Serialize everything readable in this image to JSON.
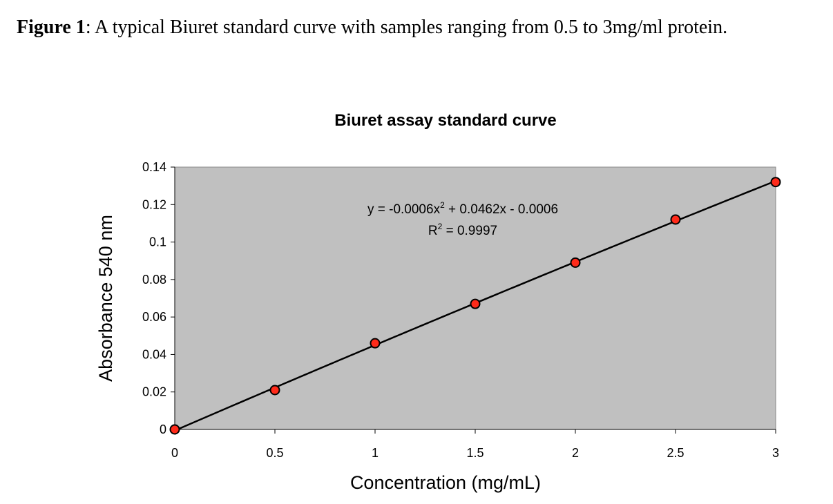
{
  "caption": {
    "label": "Figure 1",
    "text": ": A typical Biuret standard curve with samples ranging from 0.5 to 3mg/ml protein."
  },
  "chart_data": {
    "type": "scatter",
    "title": "Biuret assay standard curve",
    "xlabel": "Concentration (mg/mL)",
    "ylabel": "Absorbance 540 nm",
    "xlim": [
      0,
      3
    ],
    "ylim": [
      0,
      0.14
    ],
    "x_ticks": [
      "0",
      "0.5",
      "1",
      "1.5",
      "2",
      "2.5",
      "3"
    ],
    "y_ticks": [
      "0",
      "0.02",
      "0.04",
      "0.06",
      "0.08",
      "0.1",
      "0.12",
      "0.14"
    ],
    "grid": false,
    "legend": "none",
    "series": [
      {
        "x": [
          0,
          0.5,
          1,
          1.5,
          2,
          2.5,
          3
        ],
        "y": [
          0,
          0.021,
          0.046,
          0.067,
          0.089,
          0.112,
          0.132
        ]
      }
    ],
    "trendline": {
      "type": "polynomial",
      "coefficients": [
        -0.0006,
        0.0462,
        -0.0006
      ],
      "equation_prefix": "y = -0.0006x",
      "equation_exp": "2",
      "equation_suffix": " + 0.0462x - 0.0006",
      "r2_prefix": "R",
      "r2_exp": "2",
      "r2_suffix": " = 0.9997"
    },
    "colors": {
      "plot_background": "#c0c0c0",
      "marker_fill": "#ff2a1a",
      "marker_stroke": "#000000",
      "line": "#000000"
    }
  }
}
